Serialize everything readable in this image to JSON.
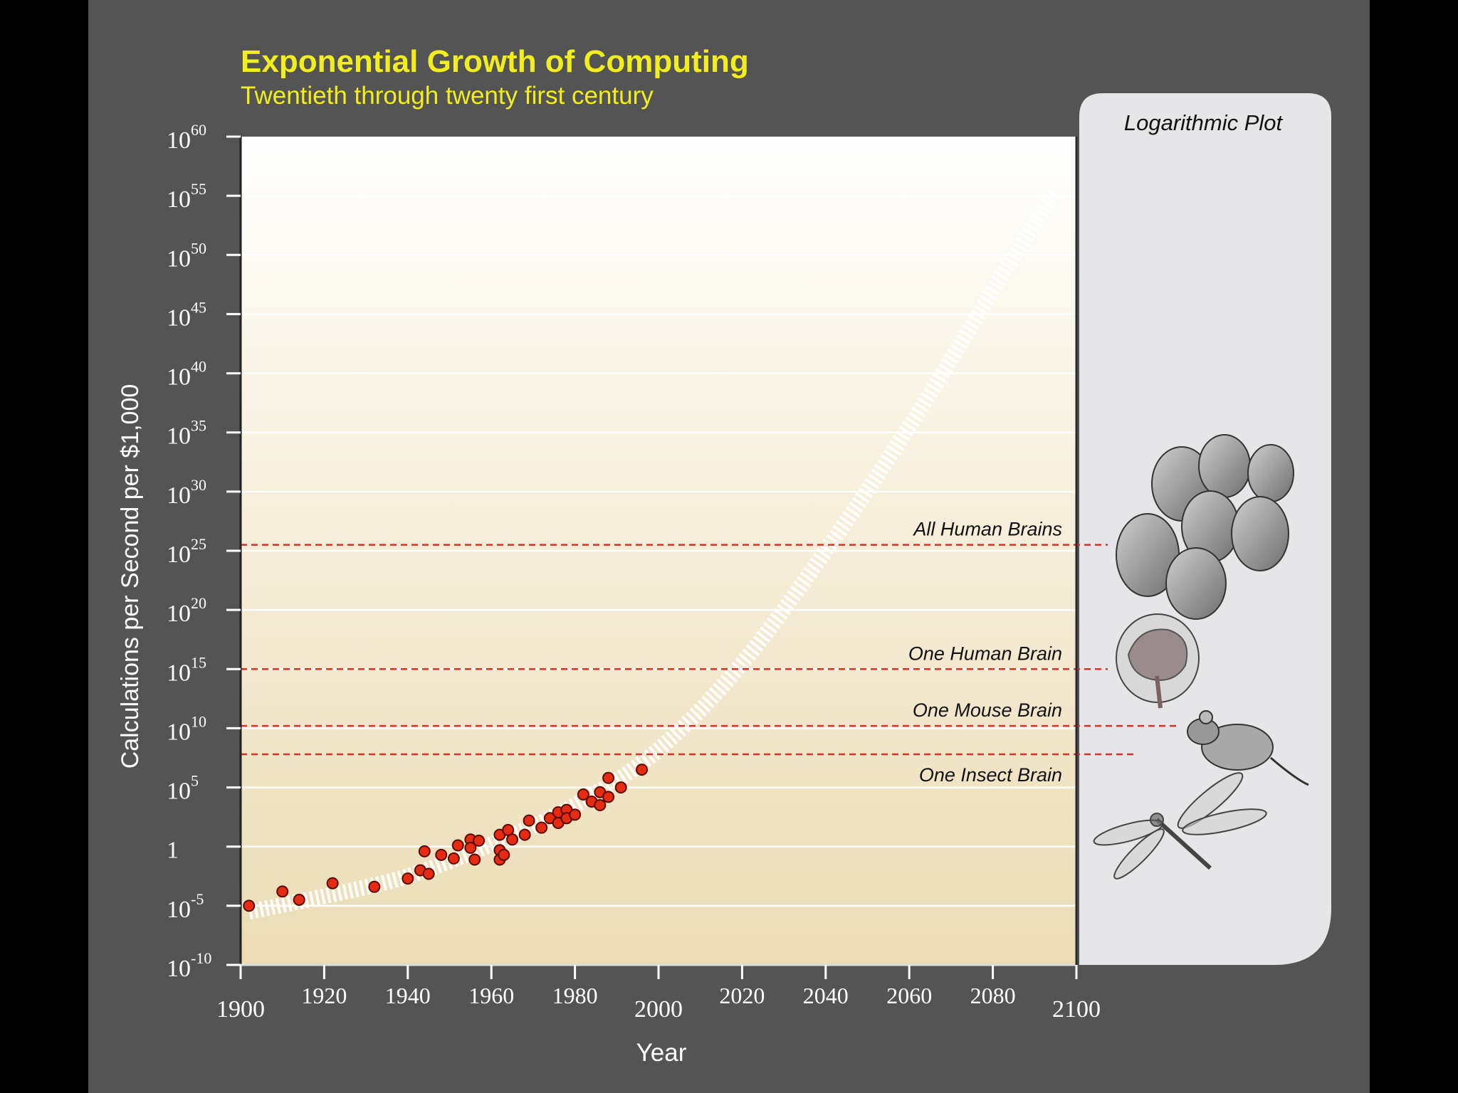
{
  "colors": {
    "background": "#545454",
    "letterbox": "#000000",
    "title": "#f2ee1d",
    "plot_top": "#ffffff",
    "plot_bottom": "#ede0bd",
    "point": "#e52b12",
    "reference_line": "#d9302a",
    "side_panel": "#e6e6e8"
  },
  "chart_data": {
    "type": "scatter",
    "title": "Exponential Growth of Computing",
    "subtitle": "Twentieth through twenty first century",
    "xlabel": "Year",
    "ylabel": "Calculations per Second per $1,000",
    "xlim": [
      1900,
      2100
    ],
    "ylim_log10": [
      -10,
      60
    ],
    "x_ticks_low": [
      "1900",
      "2000",
      "2100"
    ],
    "x_ticks_high": [
      "1920",
      "1940",
      "1960",
      "1980",
      "2020",
      "2040",
      "2060",
      "2080"
    ],
    "y_ticks": [
      {
        "log": 60,
        "base": "10",
        "exp": "60"
      },
      {
        "log": 55,
        "base": "10",
        "exp": "55"
      },
      {
        "log": 50,
        "base": "10",
        "exp": "50"
      },
      {
        "log": 45,
        "base": "10",
        "exp": "45"
      },
      {
        "log": 40,
        "base": "10",
        "exp": "40"
      },
      {
        "log": 35,
        "base": "10",
        "exp": "35"
      },
      {
        "log": 30,
        "base": "10",
        "exp": "30"
      },
      {
        "log": 25,
        "base": "10",
        "exp": "25"
      },
      {
        "log": 20,
        "base": "10",
        "exp": "20"
      },
      {
        "log": 15,
        "base": "10",
        "exp": "15"
      },
      {
        "log": 10,
        "base": "10",
        "exp": "10"
      },
      {
        "log": 5,
        "base": "10",
        "exp": "5"
      },
      {
        "log": 0,
        "base": "1",
        "exp": ""
      },
      {
        "log": -5,
        "base": "10",
        "exp": "-5"
      },
      {
        "log": -10,
        "base": "10",
        "exp": "-10"
      }
    ],
    "gridlines": [
      -5,
      0,
      5,
      10,
      15,
      20,
      25,
      30,
      35,
      40,
      45,
      50,
      55
    ],
    "points_year_log10": [
      [
        1902,
        -5.0
      ],
      [
        1910,
        -3.8
      ],
      [
        1914,
        -4.5
      ],
      [
        1922,
        -3.1
      ],
      [
        1932,
        -3.4
      ],
      [
        1940,
        -2.7
      ],
      [
        1943,
        -2.0
      ],
      [
        1944,
        -0.4
      ],
      [
        1945,
        -2.3
      ],
      [
        1948,
        -0.7
      ],
      [
        1951,
        -1.0
      ],
      [
        1952,
        0.1
      ],
      [
        1955,
        0.6
      ],
      [
        1955,
        -0.1
      ],
      [
        1956,
        -1.1
      ],
      [
        1957,
        0.5
      ],
      [
        1962,
        1.0
      ],
      [
        1962,
        -0.3
      ],
      [
        1962,
        -1.1
      ],
      [
        1963,
        -0.7
      ],
      [
        1964,
        1.4
      ],
      [
        1965,
        0.6
      ],
      [
        1968,
        1.0
      ],
      [
        1969,
        2.2
      ],
      [
        1972,
        1.6
      ],
      [
        1974,
        2.4
      ],
      [
        1976,
        2.0
      ],
      [
        1976,
        2.9
      ],
      [
        1978,
        3.1
      ],
      [
        1978,
        2.4
      ],
      [
        1980,
        2.7
      ],
      [
        1982,
        4.4
      ],
      [
        1984,
        3.8
      ],
      [
        1986,
        3.5
      ],
      [
        1986,
        4.6
      ],
      [
        1988,
        5.8
      ],
      [
        1988,
        4.2
      ],
      [
        1991,
        5.0
      ],
      [
        1996,
        6.5
      ]
    ],
    "trend_curve_year_log10": [
      [
        1902,
        -5.5
      ],
      [
        1920,
        -4.2
      ],
      [
        1940,
        -2.5
      ],
      [
        1960,
        0.2
      ],
      [
        1980,
        3.5
      ],
      [
        2000,
        8.2
      ],
      [
        2020,
        15.5
      ],
      [
        2040,
        25.0
      ],
      [
        2060,
        35.5
      ],
      [
        2080,
        47.0
      ],
      [
        2095,
        55.5
      ]
    ],
    "reference_lines": [
      {
        "label": "All Human Brains",
        "log10": 25.5
      },
      {
        "label": "One Human Brain",
        "log10": 15
      },
      {
        "label": "One Mouse Brain",
        "log10": 10.2
      },
      {
        "label": "One Insect Brain",
        "log10": 7.8
      }
    ],
    "side_panel_title": "Logarithmic Plot"
  }
}
